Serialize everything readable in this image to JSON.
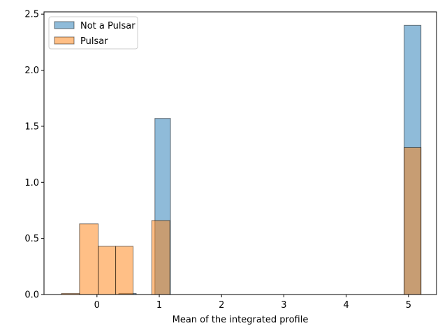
{
  "chart_data": {
    "type": "bar",
    "xlabel": "Mean of the integrated profile",
    "ylabel": "",
    "xlim": [
      -0.85,
      5.45
    ],
    "ylim": [
      0,
      2.52
    ],
    "xticks": [
      0,
      1,
      2,
      3,
      4,
      5
    ],
    "yticks": [
      0.0,
      0.5,
      1.0,
      1.5,
      2.0,
      2.5
    ],
    "xtick_labels": [
      "0",
      "1",
      "2",
      "3",
      "4",
      "5"
    ],
    "ytick_labels": [
      "0.0",
      "0.5",
      "1.0",
      "1.5",
      "2.0",
      "2.5"
    ],
    "grid": false,
    "legend_position": "top-left",
    "series": [
      {
        "name": "Not a Pulsar",
        "color": "#1f77b4",
        "bins": [
          {
            "x0": 0.35,
            "x1": 0.63,
            "value": 0.01
          },
          {
            "x0": 0.93,
            "x1": 1.18,
            "value": 1.57
          },
          {
            "x0": 4.93,
            "x1": 5.2,
            "value": 2.4
          }
        ]
      },
      {
        "name": "Pulsar",
        "color": "#ff7f0e",
        "bins": [
          {
            "x0": -0.57,
            "x1": -0.28,
            "value": 0.01
          },
          {
            "x0": -0.28,
            "x1": 0.02,
            "value": 0.63
          },
          {
            "x0": 0.02,
            "x1": 0.3,
            "value": 0.43
          },
          {
            "x0": 0.3,
            "x1": 0.58,
            "value": 0.43
          },
          {
            "x0": 0.88,
            "x1": 1.17,
            "value": 0.66
          },
          {
            "x0": 4.93,
            "x1": 5.2,
            "value": 1.31
          }
        ]
      }
    ]
  }
}
